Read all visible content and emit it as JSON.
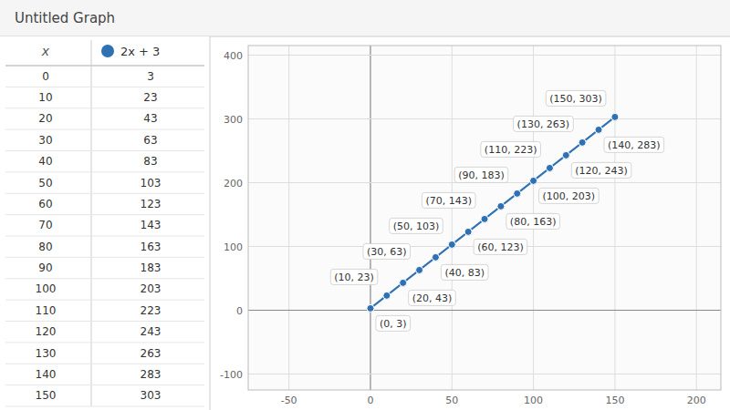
{
  "chart_data": {
    "type": "scatter",
    "title": "Untitled Graph",
    "xlabel": "x",
    "x": [
      0,
      10,
      20,
      30,
      40,
      50,
      60,
      70,
      80,
      90,
      100,
      110,
      120,
      130,
      140,
      150
    ],
    "series": [
      {
        "name": "2x + 3",
        "color": "#2d70b3",
        "marker": "circle",
        "line_style": "solid",
        "values": [
          3,
          23,
          43,
          63,
          83,
          103,
          123,
          143,
          163,
          183,
          203,
          223,
          243,
          263,
          283,
          303
        ]
      }
    ],
    "xlim": [
      -75,
      215
    ],
    "ylim": [
      -125,
      415
    ],
    "xticks": [
      -50,
      0,
      50,
      100,
      150,
      200
    ],
    "yticks": [
      -100,
      0,
      100,
      200,
      300,
      400
    ],
    "grid": true,
    "annotations": [
      {
        "x": 0,
        "y": 3,
        "text": "(0, 3)"
      },
      {
        "x": 10,
        "y": 23,
        "text": "(10, 23)"
      },
      {
        "x": 20,
        "y": 43,
        "text": "(20, 43)"
      },
      {
        "x": 30,
        "y": 63,
        "text": "(30, 63)"
      },
      {
        "x": 40,
        "y": 83,
        "text": "(40, 83)"
      },
      {
        "x": 50,
        "y": 103,
        "text": "(50, 103)"
      },
      {
        "x": 60,
        "y": 123,
        "text": "(60, 123)"
      },
      {
        "x": 70,
        "y": 143,
        "text": "(70, 143)"
      },
      {
        "x": 80,
        "y": 163,
        "text": "(80, 163)"
      },
      {
        "x": 90,
        "y": 183,
        "text": "(90, 183)"
      },
      {
        "x": 100,
        "y": 203,
        "text": "(100, 203)"
      },
      {
        "x": 110,
        "y": 223,
        "text": "(110, 223)"
      },
      {
        "x": 120,
        "y": 243,
        "text": "(120, 243)"
      },
      {
        "x": 130,
        "y": 263,
        "text": "(130, 263)"
      },
      {
        "x": 140,
        "y": 283,
        "text": "(140, 283)"
      },
      {
        "x": 150,
        "y": 303,
        "text": "(150, 303)"
      }
    ]
  }
}
